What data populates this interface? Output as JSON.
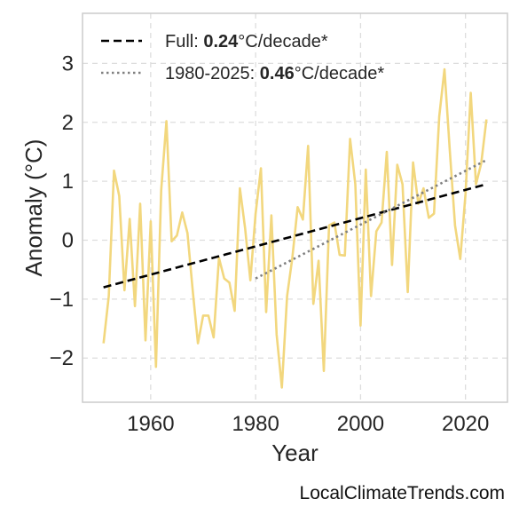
{
  "chart_data": {
    "type": "line",
    "xlabel": "Year",
    "ylabel": "Anomaly (°C)",
    "xlim": [
      1947,
      2028
    ],
    "ylim": [
      -2.75,
      3.85
    ],
    "xticks": [
      1960,
      1980,
      2000,
      2020
    ],
    "xtick_labels": [
      "1960",
      "1980",
      "2000",
      "2020"
    ],
    "yticks": [
      -2,
      -1,
      0,
      1,
      2,
      3
    ],
    "ytick_labels": [
      "−2",
      "−1",
      "0",
      "1",
      "2",
      "3"
    ],
    "grid": true,
    "legend_position": "top-left",
    "colors": {
      "series": "#f2d77e",
      "trend_full": "#000000",
      "trend_recent": "#808080",
      "grid": "#dddddd",
      "frame": "#cccccc"
    },
    "series": [
      {
        "x": [
          1951,
          1952,
          1953,
          1954,
          1955,
          1956,
          1957,
          1958,
          1959,
          1960,
          1961,
          1962,
          1963,
          1964,
          1965,
          1966,
          1967,
          1968,
          1969,
          1970,
          1971,
          1972,
          1973,
          1974,
          1975,
          1976,
          1977,
          1978,
          1979,
          1980,
          1981,
          1982,
          1983,
          1984,
          1985,
          1986,
          1987,
          1988,
          1989,
          1990,
          1991,
          1992,
          1993,
          1994,
          1995,
          1996,
          1997,
          1998,
          1999,
          2000,
          2001,
          2002,
          2003,
          2004,
          2005,
          2006,
          2007,
          2008,
          2009,
          2010,
          2011,
          2012,
          2013,
          2014,
          2015,
          2016,
          2017,
          2018,
          2019,
          2020,
          2021,
          2022,
          2023,
          2024
        ],
        "y": [
          -1.75,
          -0.95,
          1.18,
          0.75,
          -0.85,
          0.36,
          -1.12,
          0.62,
          -1.7,
          0.32,
          -2.15,
          0.85,
          2.02,
          -0.02,
          0.08,
          0.47,
          0.12,
          -0.85,
          -1.75,
          -1.28,
          -1.28,
          -1.65,
          -0.3,
          -0.65,
          -0.72,
          -1.2,
          0.88,
          0.2,
          -0.68,
          0.45,
          1.22,
          -1.22,
          0.42,
          -1.6,
          -2.5,
          -0.95,
          -0.3,
          0.56,
          0.35,
          1.6,
          -1.08,
          -0.35,
          -2.22,
          0.25,
          0.3,
          -0.25,
          -0.26,
          1.72,
          0.95,
          -1.45,
          1.2,
          -0.95,
          0.15,
          0.3,
          1.5,
          -0.42,
          1.28,
          0.95,
          -0.88,
          1.32,
          0.62,
          0.88,
          0.38,
          0.45,
          2.1,
          2.9,
          1.52,
          0.25,
          -0.32,
          0.78,
          2.5,
          0.95,
          1.3,
          2.05
        ]
      }
    ],
    "trends": [
      {
        "x": [
          1951,
          2024
        ],
        "y": [
          -0.8,
          0.95
        ],
        "style": "dashed"
      },
      {
        "x": [
          1980,
          2024
        ],
        "y": [
          -0.65,
          1.36
        ],
        "style": "dotted"
      }
    ],
    "legend": [
      {
        "prefix": "Full: ",
        "rate": "0.24",
        "suffix": "°C/decade*",
        "style": "dashed"
      },
      {
        "prefix": "1980-2025: ",
        "rate": "0.46",
        "suffix": "°C/decade*",
        "style": "dotted"
      }
    ]
  },
  "watermark": "LocalClimateTrends.com"
}
